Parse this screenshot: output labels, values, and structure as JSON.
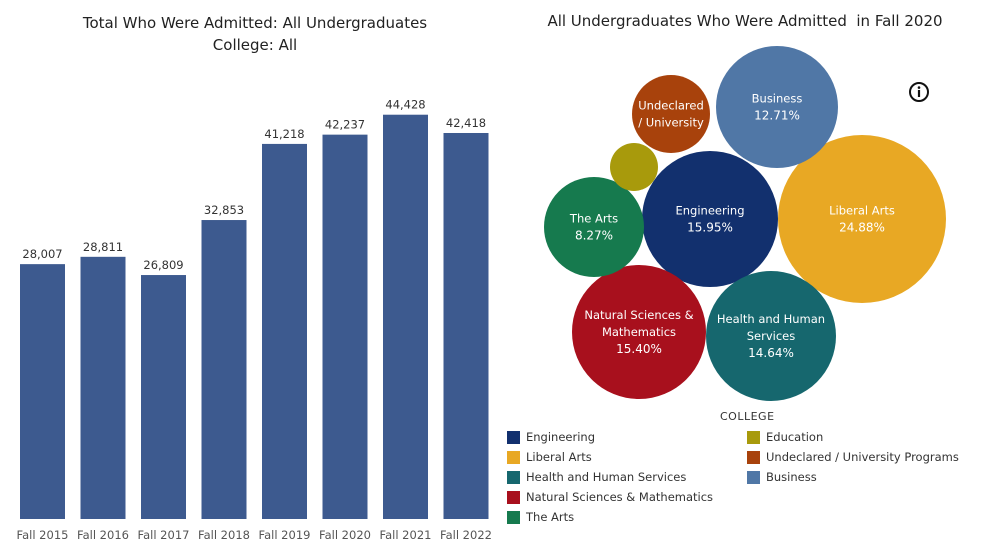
{
  "left_chart": {
    "title_line1": "Total Who Were Admitted: All Undergraduates",
    "title_line2": "College: All"
  },
  "right_chart": {
    "title": "All Undergraduates Who Were Admitted  in Fall 2020",
    "legend_title": "COLLEGE"
  },
  "legend": {
    "engineering": "Engineering",
    "liberal_arts": "Liberal Arts",
    "health": "Health and Human Services",
    "natural_sciences": "Natural Sciences & Mathematics",
    "the_arts": "The Arts",
    "education": "Education",
    "undeclared": "Undeclared / University Programs",
    "business": "Business"
  },
  "colors": {
    "bar": "#3d5a8f",
    "engineering": "#12306e",
    "liberal_arts": "#e8a824",
    "health": "#16676e",
    "natural_sciences": "#a8101d",
    "the_arts": "#167a4e",
    "education": "#a89a0c",
    "undeclared": "#a8420c",
    "business": "#5077a6"
  },
  "chart_data": [
    {
      "type": "bar",
      "title": "Total Who Were Admitted: All Undergraduates",
      "subtitle": "College: All",
      "categories": [
        "Fall 2015",
        "Fall 2016",
        "Fall 2017",
        "Fall 2018",
        "Fall 2019",
        "Fall 2020",
        "Fall 2021",
        "Fall 2022"
      ],
      "values": [
        28007,
        28811,
        26809,
        32853,
        41218,
        42237,
        44428,
        42418
      ],
      "data_labels": [
        "28,007",
        "28,811",
        "26,809",
        "32,853",
        "41,218",
        "42,237",
        "44,428",
        "42,418"
      ],
      "ylim": [
        0,
        50000
      ],
      "grid": false
    },
    {
      "type": "bubble",
      "title": "All Undergraduates Who Were Admitted  in Fall 2020",
      "legend_title": "COLLEGE",
      "series": [
        {
          "key": "liberal_arts",
          "label_lines": [
            "Liberal Arts"
          ],
          "pct": "24.88%",
          "value": 24.88
        },
        {
          "key": "engineering",
          "label_lines": [
            "Engineering"
          ],
          "pct": "15.95%",
          "value": 15.95
        },
        {
          "key": "natural_sciences",
          "label_lines": [
            "Natural Sciences &",
            "Mathematics"
          ],
          "pct": "15.40%",
          "value": 15.4
        },
        {
          "key": "health",
          "label_lines": [
            "Health and Human",
            "Services"
          ],
          "pct": "14.64%",
          "value": 14.64
        },
        {
          "key": "business",
          "label_lines": [
            "Business"
          ],
          "pct": "12.71%",
          "value": 12.71
        },
        {
          "key": "the_arts",
          "label_lines": [
            "The Arts"
          ],
          "pct": "8.27%",
          "value": 8.27
        },
        {
          "key": "undeclared",
          "label_lines": [
            "Undeclared",
            "/ University"
          ],
          "pct": "",
          "value": 5.4
        },
        {
          "key": "education",
          "label_lines": [],
          "pct": "",
          "value": 1.5
        }
      ]
    }
  ]
}
